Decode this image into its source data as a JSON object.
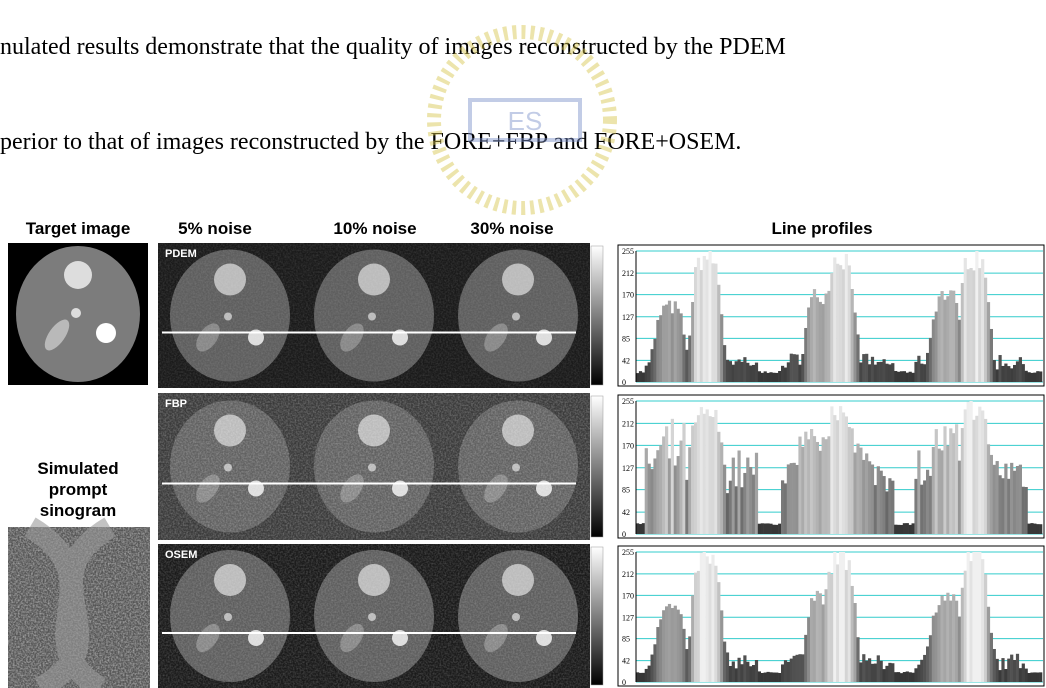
{
  "text": {
    "lines": [
      "nulated results demonstrate that the quality of images reconstructed by the PDEM",
      "perior to that of images reconstructed by the FORE+FBP and FORE+OSEM."
    ]
  },
  "figure": {
    "headers": {
      "target": "Target image",
      "noise": [
        "5% noise",
        "10% noise",
        "30% noise"
      ],
      "profiles": "Line profiles"
    },
    "sinogram_label": [
      "Simulated",
      "prompt",
      "sinogram"
    ],
    "rows": [
      {
        "label": "PDEM",
        "yticks": [
          255,
          212,
          170,
          127,
          85,
          42,
          0
        ]
      },
      {
        "label": "FBP",
        "yticks": [
          255,
          212,
          170,
          127,
          85,
          42,
          0
        ]
      },
      {
        "label": "OSEM",
        "yticks": [
          255,
          212,
          170,
          127,
          85,
          42,
          0
        ]
      }
    ]
  }
}
